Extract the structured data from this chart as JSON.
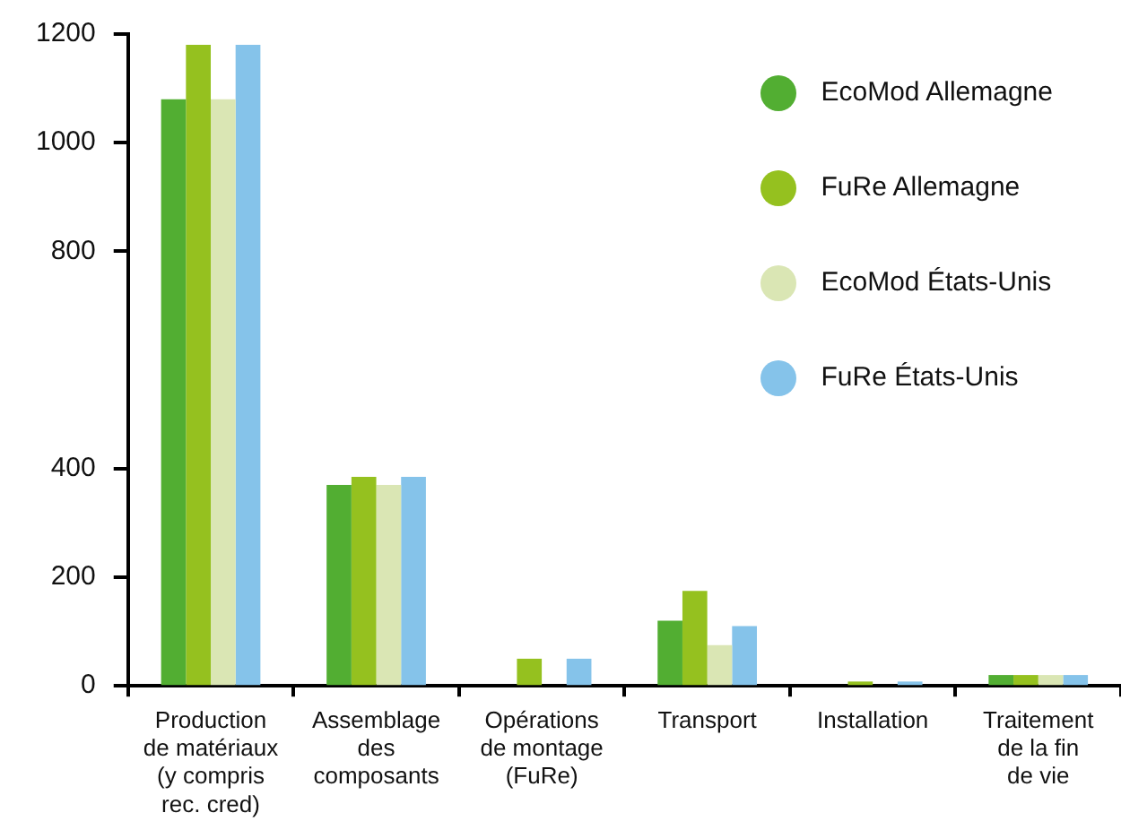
{
  "chart_data": {
    "type": "bar",
    "categories": [
      "Production\nde matériaux\n(y compris\nrec. cred)",
      "Assemblage\ndes\ncomposants",
      "Opérations\nde montage\n(FuRe)",
      "Transport",
      "Installation",
      "Traitement\nde la fin\nde vie"
    ],
    "series": [
      {
        "name": "EcoMod Allemagne",
        "color": "#52ae32",
        "values": [
          1080,
          370,
          null,
          120,
          null,
          20
        ]
      },
      {
        "name": "FuRe Allemagne",
        "color": "#95c11f",
        "values": [
          1180,
          385,
          50,
          175,
          8,
          20
        ]
      },
      {
        "name": "EcoMod États-Unis",
        "color": "#dae6b4",
        "values": [
          1080,
          370,
          null,
          75,
          null,
          20
        ]
      },
      {
        "name": "FuRe États-Unis",
        "color": "#85c3ea",
        "values": [
          1180,
          385,
          50,
          110,
          8,
          20
        ]
      }
    ],
    "ylim": [
      0,
      1200
    ],
    "yticks": [
      0,
      200,
      400,
      800,
      1000,
      1200
    ],
    "grid": false,
    "legend": "top right"
  }
}
